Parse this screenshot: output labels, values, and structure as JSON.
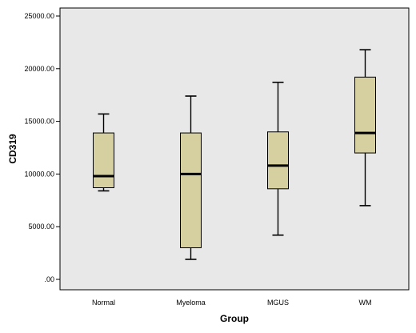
{
  "chart_data": {
    "type": "boxplot",
    "xlabel": "Group",
    "ylabel": "CD319",
    "ylim": [
      0,
      25000
    ],
    "yticks": [
      0,
      5000,
      10000,
      15000,
      20000,
      25000
    ],
    "ytick_labels": [
      ".00",
      "5000.00",
      "10000.00",
      "15000.00",
      "20000.00",
      "25000.00"
    ],
    "categories": [
      "Normal",
      "Myeloma",
      "MGUS",
      "WM"
    ],
    "boxes": [
      {
        "category": "Normal",
        "min": 8400,
        "q1": 8700,
        "median": 9800,
        "q3": 13900,
        "max": 15700
      },
      {
        "category": "Myeloma",
        "min": 1900,
        "q1": 3000,
        "median": 10000,
        "q3": 13900,
        "max": 17400
      },
      {
        "category": "MGUS",
        "min": 4200,
        "q1": 8600,
        "median": 10800,
        "q3": 14000,
        "max": 18700
      },
      {
        "category": "WM",
        "min": 7000,
        "q1": 12000,
        "median": 13900,
        "q3": 19200,
        "max": 21800
      }
    ],
    "grid": false,
    "colors": {
      "plot_background": "#e8e8e8",
      "box_fill": "#d6d0a0",
      "stroke": "#000000"
    }
  }
}
